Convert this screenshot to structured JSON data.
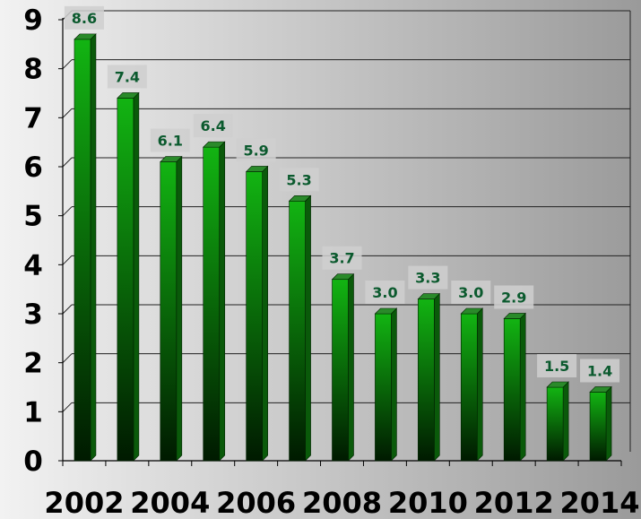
{
  "chart_data": {
    "type": "bar",
    "categories": [
      "2002",
      "2003",
      "2004",
      "2005",
      "2006",
      "2007",
      "2008",
      "2009",
      "2010",
      "2011",
      "2012",
      "2013",
      "2014"
    ],
    "values": [
      8.6,
      7.4,
      6.1,
      6.4,
      5.9,
      5.3,
      3.7,
      3.0,
      3.3,
      3.0,
      2.9,
      1.5,
      1.4
    ],
    "data_labels": [
      "8.6",
      "7.4",
      "6.1",
      "6.4",
      "5.9",
      "5.3",
      "3.7",
      "3.0",
      "3.3",
      "3.0",
      "2.9",
      "1.5",
      "1.4"
    ],
    "x_tick_labels": [
      "2002",
      "2004",
      "2006",
      "2008",
      "2010",
      "2012",
      "2014"
    ],
    "y_tick_labels": [
      "0",
      "1",
      "2",
      "3",
      "4",
      "5",
      "6",
      "7",
      "8",
      "9"
    ],
    "ylim": [
      0,
      9
    ],
    "grid": true,
    "title": "",
    "xlabel": "",
    "ylabel": "",
    "colors": {
      "bar_top": "#12b412",
      "bar_bottom": "#001a00",
      "bar_side": "#0a5a0a",
      "bar_cap": "#2a8a2a",
      "label_bg": "#cfcfcf",
      "label_text": "#0b5a2e",
      "plot_bg_light": "#f2f2f2",
      "plot_bg_dark": "#9a9a9a"
    }
  }
}
